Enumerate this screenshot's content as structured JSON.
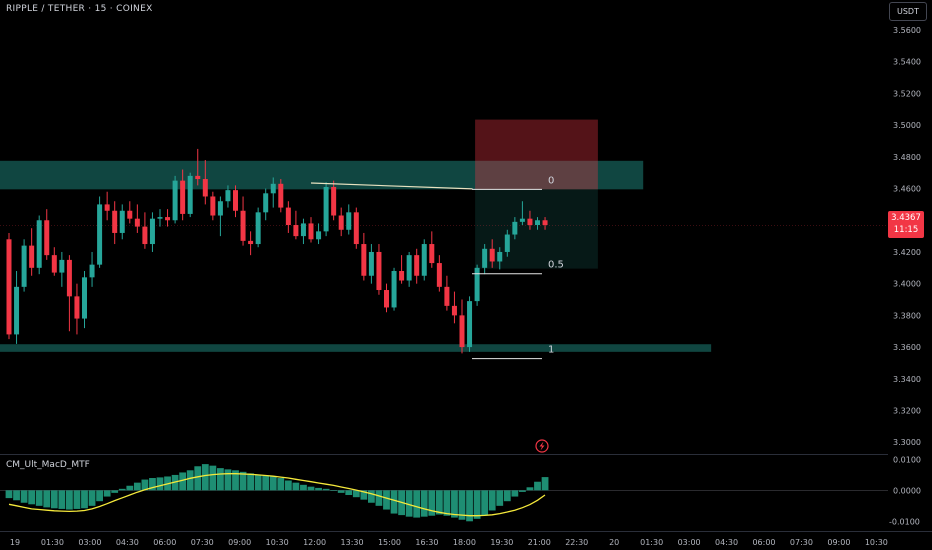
{
  "header": {
    "symbol": "RIPPLE / TETHER · 15 · COINEX",
    "unit_button": "USDT"
  },
  "indicator": {
    "name": "CM_Ult_MacD_MTF"
  },
  "price_tag": {
    "price": "3.4367",
    "countdown": "11:15"
  },
  "colors": {
    "up": "#26a69a",
    "down": "#f23645",
    "zone": "#26a69a",
    "signal": "#f5e93b"
  },
  "chart_data": [
    {
      "type": "candlestick",
      "y_ticks": [
        "3.5600",
        "3.5400",
        "3.5200",
        "3.5000",
        "3.4800",
        "3.4600",
        "3.4400",
        "3.4200",
        "3.4000",
        "3.3800",
        "3.3600",
        "3.3400",
        "3.3200",
        "3.3000"
      ],
      "ylim": [
        3.2995,
        3.5638
      ],
      "x_ticks": [
        "19",
        "01:30",
        "03:00",
        "04:30",
        "06:00",
        "07:30",
        "09:00",
        "10:30",
        "12:00",
        "13:30",
        "15:00",
        "16:30",
        "18:00",
        "19:30",
        "21:00",
        "22:30",
        "20",
        "01:30",
        "03:00",
        "04:30",
        "06:00",
        "07:30",
        "09:00",
        "10:30"
      ],
      "last_price": 3.4367,
      "candles": [
        [
          3.428,
          3.432,
          3.365,
          3.368
        ],
        [
          3.368,
          3.408,
          3.362,
          3.398
        ],
        [
          3.398,
          3.428,
          3.395,
          3.424
        ],
        [
          3.424,
          3.435,
          3.405,
          3.41
        ],
        [
          3.41,
          3.443,
          3.406,
          3.44
        ],
        [
          3.44,
          3.447,
          3.415,
          3.418
        ],
        [
          3.418,
          3.423,
          3.405,
          3.407
        ],
        [
          3.407,
          3.42,
          3.398,
          3.415
        ],
        [
          3.415,
          3.418,
          3.37,
          3.392
        ],
        [
          3.392,
          3.4,
          3.368,
          3.378
        ],
        [
          3.378,
          3.408,
          3.372,
          3.404
        ],
        [
          3.404,
          3.42,
          3.398,
          3.412
        ],
        [
          3.412,
          3.455,
          3.41,
          3.45
        ],
        [
          3.45,
          3.458,
          3.44,
          3.446
        ],
        [
          3.446,
          3.452,
          3.425,
          3.432
        ],
        [
          3.432,
          3.45,
          3.428,
          3.446
        ],
        [
          3.446,
          3.452,
          3.438,
          3.441
        ],
        [
          3.441,
          3.45,
          3.432,
          3.436
        ],
        [
          3.436,
          3.445,
          3.422,
          3.425
        ],
        [
          3.425,
          3.445,
          3.42,
          3.441
        ],
        [
          3.441,
          3.447,
          3.436,
          3.442
        ],
        [
          3.442,
          3.447,
          3.436,
          3.44
        ],
        [
          3.44,
          3.468,
          3.438,
          3.465
        ],
        [
          3.465,
          3.472,
          3.44,
          3.444
        ],
        [
          3.444,
          3.47,
          3.442,
          3.468
        ],
        [
          3.468,
          3.485,
          3.462,
          3.466
        ],
        [
          3.466,
          3.478,
          3.45,
          3.455
        ],
        [
          3.455,
          3.458,
          3.44,
          3.443
        ],
        [
          3.443,
          3.455,
          3.43,
          3.452
        ],
        [
          3.452,
          3.462,
          3.448,
          3.459
        ],
        [
          3.459,
          3.462,
          3.442,
          3.446
        ],
        [
          3.446,
          3.455,
          3.424,
          3.427
        ],
        [
          3.427,
          3.433,
          3.418,
          3.425
        ],
        [
          3.425,
          3.448,
          3.423,
          3.445
        ],
        [
          3.445,
          3.46,
          3.44,
          3.457
        ],
        [
          3.457,
          3.467,
          3.448,
          3.463
        ],
        [
          3.463,
          3.466,
          3.445,
          3.448
        ],
        [
          3.448,
          3.452,
          3.432,
          3.437
        ],
        [
          3.437,
          3.446,
          3.428,
          3.43
        ],
        [
          3.43,
          3.441,
          3.425,
          3.438
        ],
        [
          3.438,
          3.442,
          3.426,
          3.428
        ],
        [
          3.428,
          3.438,
          3.425,
          3.433
        ],
        [
          3.433,
          3.464,
          3.43,
          3.461
        ],
        [
          3.461,
          3.465,
          3.44,
          3.443
        ],
        [
          3.443,
          3.448,
          3.43,
          3.434
        ],
        [
          3.434,
          3.45,
          3.431,
          3.445
        ],
        [
          3.445,
          3.448,
          3.422,
          3.425
        ],
        [
          3.425,
          3.432,
          3.402,
          3.405
        ],
        [
          3.405,
          3.425,
          3.4,
          3.42
        ],
        [
          3.42,
          3.425,
          3.393,
          3.396
        ],
        [
          3.396,
          3.4,
          3.382,
          3.385
        ],
        [
          3.385,
          3.41,
          3.383,
          3.408
        ],
        [
          3.408,
          3.418,
          3.4,
          3.402
        ],
        [
          3.402,
          3.42,
          3.398,
          3.418
        ],
        [
          3.418,
          3.422,
          3.4,
          3.405
        ],
        [
          3.405,
          3.428,
          3.402,
          3.425
        ],
        [
          3.425,
          3.433,
          3.41,
          3.413
        ],
        [
          3.413,
          3.418,
          3.395,
          3.398
        ],
        [
          3.398,
          3.405,
          3.383,
          3.386
        ],
        [
          3.386,
          3.395,
          3.375,
          3.38
        ],
        [
          3.38,
          3.39,
          3.356,
          3.36
        ],
        [
          3.36,
          3.392,
          3.357,
          3.389
        ],
        [
          3.389,
          3.412,
          3.386,
          3.41
        ],
        [
          3.41,
          3.425,
          3.406,
          3.422
        ],
        [
          3.422,
          3.428,
          3.41,
          3.414
        ],
        [
          3.414,
          3.423,
          3.409,
          3.42
        ],
        [
          3.42,
          3.434,
          3.417,
          3.431
        ],
        [
          3.431,
          3.442,
          3.428,
          3.439
        ],
        [
          3.439,
          3.452,
          3.437,
          3.441
        ],
        [
          3.441,
          3.446,
          3.434,
          3.437
        ],
        [
          3.437,
          3.442,
          3.434,
          3.44
        ],
        [
          3.44,
          3.442,
          3.434,
          3.437
        ]
      ],
      "zones": [
        {
          "low": 3.4595,
          "high": 3.4775,
          "end_candle": 84
        },
        {
          "low": 3.357,
          "high": 3.3618,
          "end_candle": 93
        }
      ],
      "position": {
        "start_candle": 62,
        "end_candle": 78,
        "entry": 3.4595,
        "stop": 3.5035,
        "target": 3.4095
      },
      "fib_levels": [
        {
          "label": "0",
          "price": 3.4595
        },
        {
          "label": "0.5",
          "price": 3.4063
        },
        {
          "label": "1",
          "price": 3.3527
        }
      ],
      "trendline": {
        "from_candle": 40,
        "from_price": 3.4635,
        "to_candle": 61,
        "to_price": 3.4598
      }
    },
    {
      "type": "histogram+line",
      "name": "CM_Ult_MacD_MTF",
      "y_ticks": [
        "0.0100",
        "0.0000",
        "-0.0100"
      ],
      "ylim": [
        -0.0112,
        0.0108
      ],
      "histogram": [
        -0.0025,
        -0.0032,
        -0.004,
        -0.0045,
        -0.005,
        -0.0055,
        -0.0058,
        -0.006,
        -0.0062,
        -0.006,
        -0.0058,
        -0.005,
        -0.0035,
        -0.002,
        -0.0008,
        0.0005,
        0.0015,
        0.0025,
        0.0035,
        0.004,
        0.0042,
        0.0045,
        0.005,
        0.0058,
        0.0065,
        0.0078,
        0.0085,
        0.008,
        0.0072,
        0.0068,
        0.0065,
        0.006,
        0.0055,
        0.005,
        0.0048,
        0.0046,
        0.004,
        0.0032,
        0.0025,
        0.0018,
        0.0012,
        0.0008,
        0.0005,
        0.0,
        -0.0008,
        -0.0015,
        -0.0022,
        -0.003,
        -0.004,
        -0.005,
        -0.0062,
        -0.0075,
        -0.008,
        -0.0085,
        -0.0088,
        -0.0085,
        -0.0082,
        -0.0078,
        -0.0082,
        -0.0088,
        -0.0095,
        -0.01,
        -0.0092,
        -0.008,
        -0.0065,
        -0.005,
        -0.0035,
        -0.002,
        -0.0005,
        0.001,
        0.0028,
        0.0043
      ],
      "signal": [
        -0.0045,
        -0.005,
        -0.0055,
        -0.006,
        -0.0062,
        -0.0064,
        -0.0066,
        -0.0067,
        -0.0068,
        -0.0067,
        -0.0065,
        -0.006,
        -0.0052,
        -0.0043,
        -0.0033,
        -0.0024,
        -0.0015,
        -0.0006,
        0.0002,
        0.0009,
        0.0015,
        0.0021,
        0.0027,
        0.0033,
        0.0039,
        0.0044,
        0.0048,
        0.0051,
        0.0053,
        0.0054,
        0.0054,
        0.0053,
        0.0052,
        0.005,
        0.0048,
        0.0046,
        0.0043,
        0.004,
        0.0036,
        0.0032,
        0.0028,
        0.0024,
        0.002,
        0.0016,
        0.0011,
        0.0006,
        0.0001,
        -0.0005,
        -0.0011,
        -0.0018,
        -0.0025,
        -0.0032,
        -0.0039,
        -0.0046,
        -0.0053,
        -0.006,
        -0.0066,
        -0.0071,
        -0.0075,
        -0.0078,
        -0.008,
        -0.0082,
        -0.0082,
        -0.0081,
        -0.0079,
        -0.0075,
        -0.007,
        -0.0064,
        -0.0056,
        -0.0046,
        -0.0032,
        -0.0015
      ]
    }
  ]
}
